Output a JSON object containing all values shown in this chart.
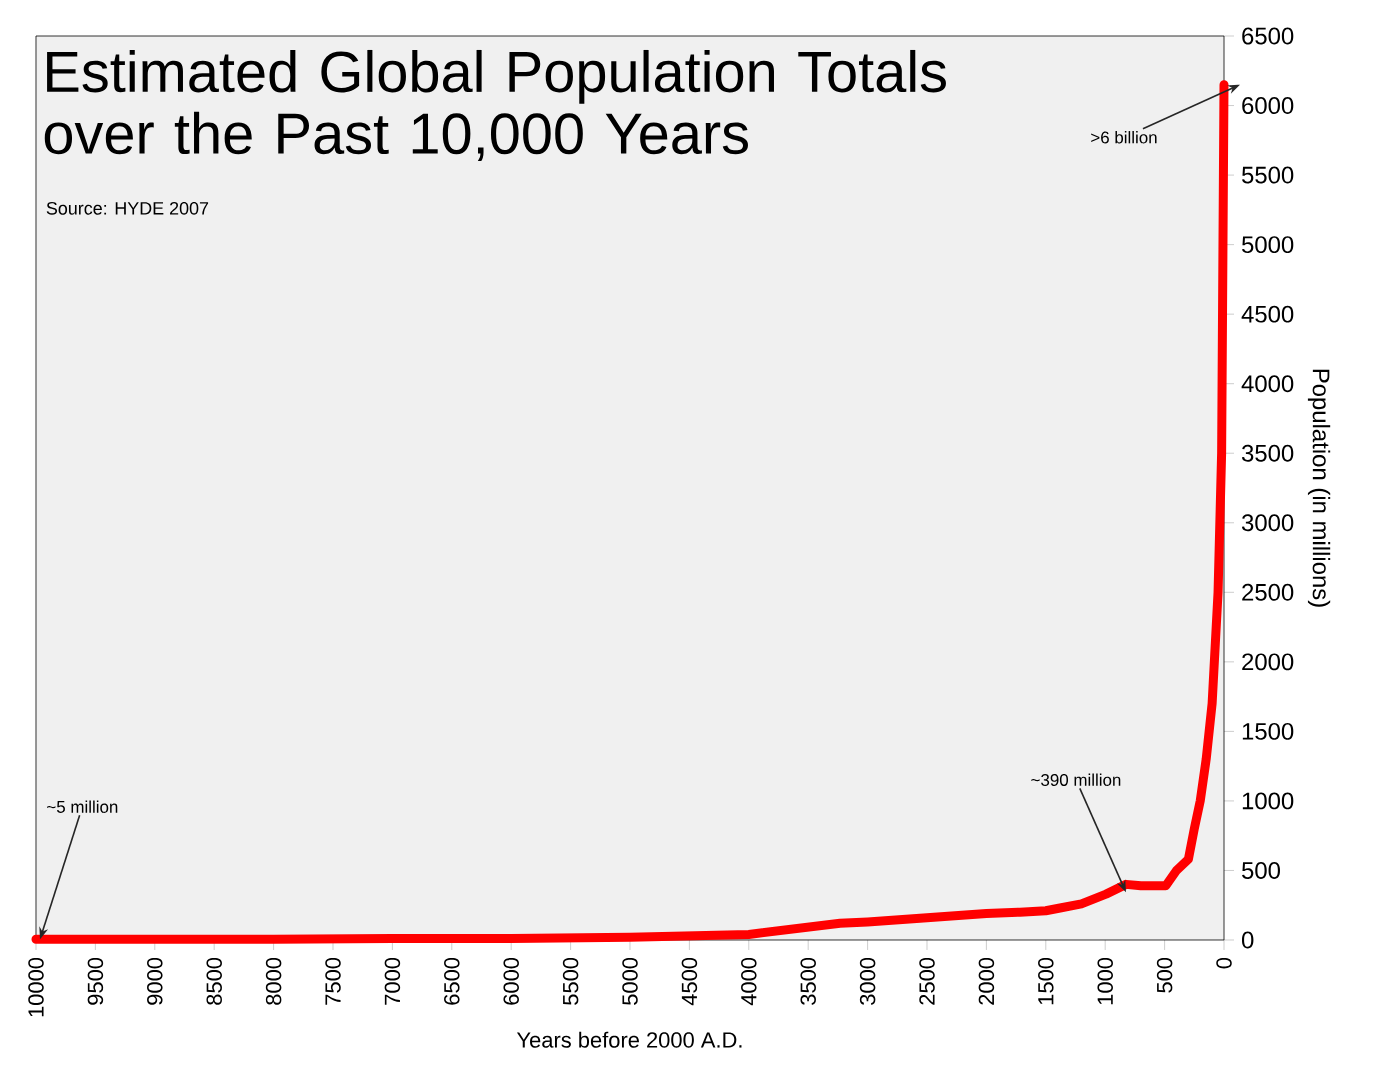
{
  "chart_data": {
    "type": "line",
    "title": "Estimated Global Population Totals over the Past 10,000 Years",
    "subtitle": "Source: HYDE 2007",
    "xlabel": "Years before 2000 A.D.",
    "ylabel": "Population (in millions)",
    "x": [
      10000,
      9000,
      8000,
      7000,
      6000,
      5000,
      4000,
      3232,
      3000,
      2500,
      2000,
      1717,
      1500,
      1380,
      1200,
      993,
      825,
      700,
      620,
      490,
      400,
      300,
      250,
      200,
      150,
      100,
      50,
      20,
      0
    ],
    "series": [
      {
        "color": "#ff0000",
        "values": [
          5,
          5,
          5,
          10,
          10,
          20,
          40,
          120,
          130,
          160,
          190,
          200,
          210,
          230,
          260,
          330,
          400,
          390,
          390,
          390,
          500,
          580,
          800,
          1000,
          1300,
          1700,
          2500,
          3500,
          6150
        ]
      }
    ],
    "xlim": [
      10000,
      0
    ],
    "ylim": [
      0,
      6500
    ],
    "xticks": [
      10000,
      9500,
      9000,
      8500,
      8000,
      7500,
      7000,
      6500,
      6000,
      5500,
      5000,
      4500,
      4000,
      3500,
      3000,
      2500,
      2000,
      1500,
      1000,
      500,
      0
    ],
    "yticks": [
      0,
      500,
      1000,
      1500,
      2000,
      2500,
      3000,
      3500,
      4000,
      4500,
      5000,
      5500,
      6000,
      6500
    ],
    "marker": "none",
    "line_style": "solid",
    "annotations": [
      {
        "text": "~5 million",
        "x": 10000,
        "y": 5
      },
      {
        "text": "~390 million",
        "x": 825,
        "y": 400
      },
      {
        "text": ">6 billion",
        "x": 0,
        "y": 6150
      }
    ]
  }
}
